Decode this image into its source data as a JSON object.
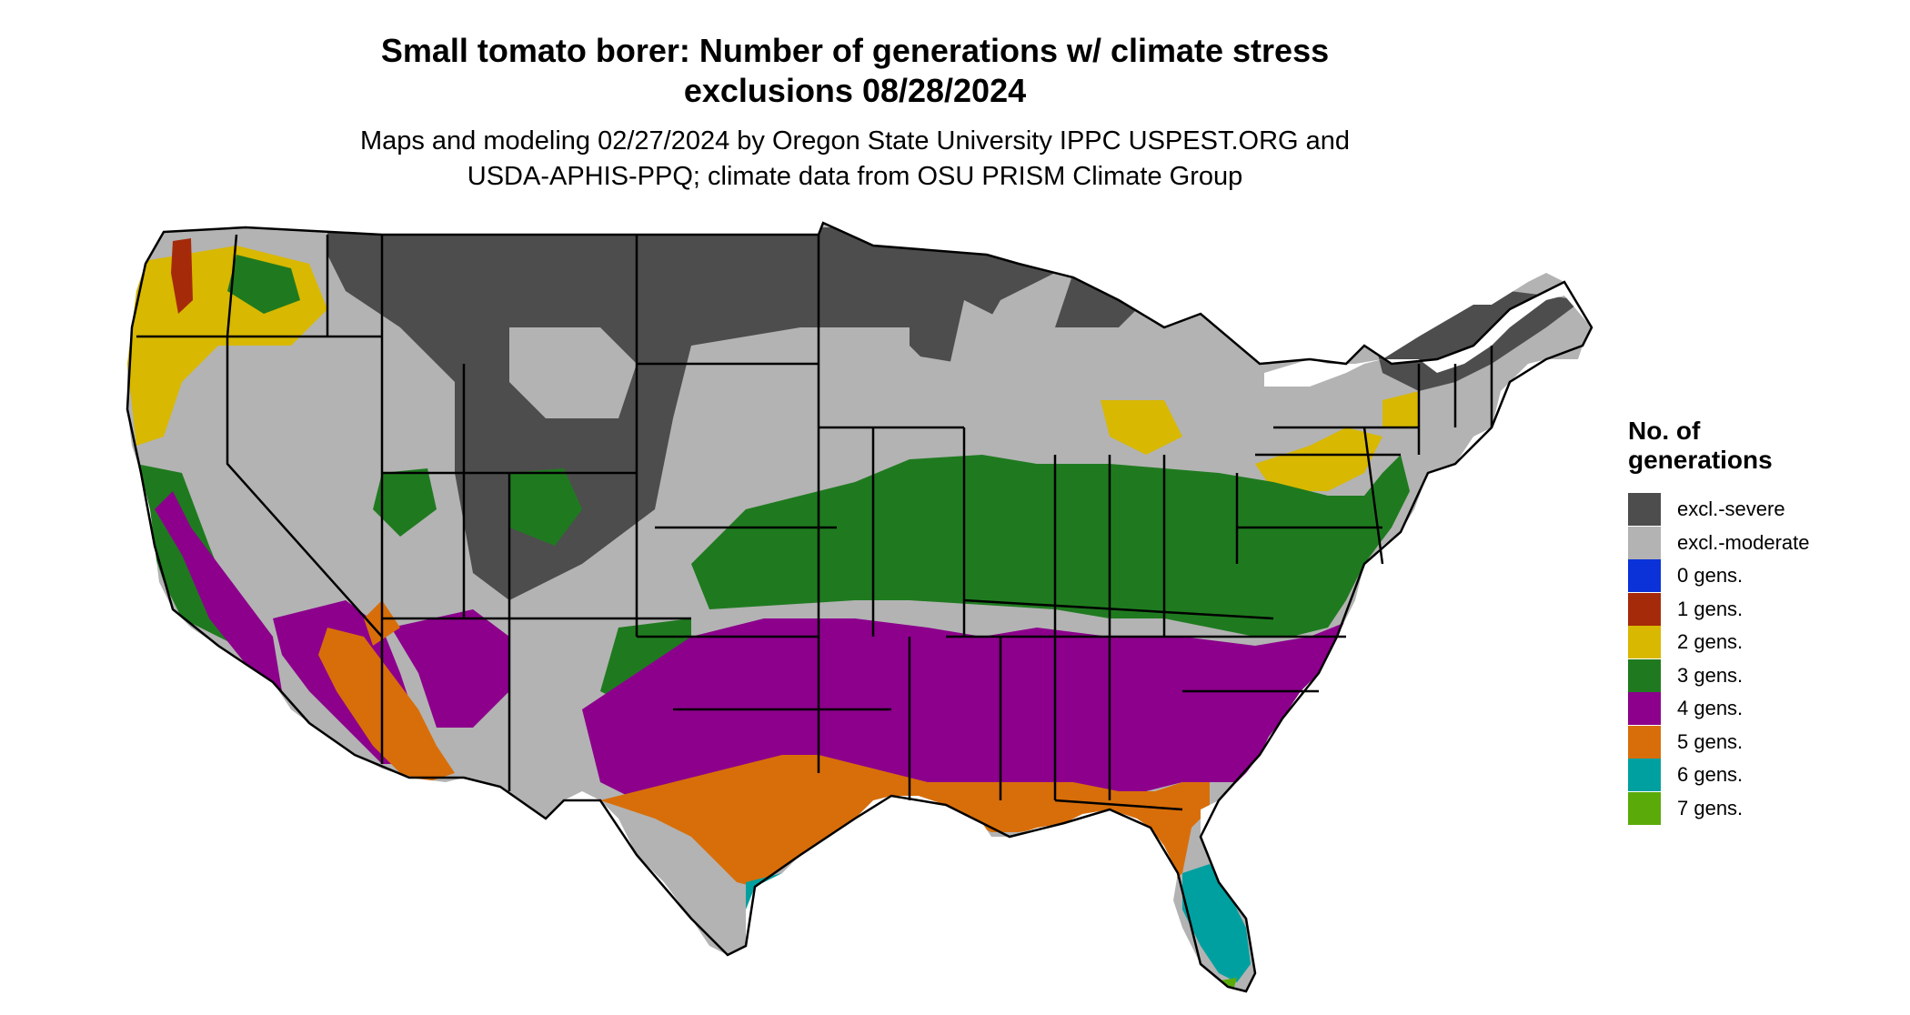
{
  "title": {
    "line1": "Small tomato borer: Number of generations w/ climate stress",
    "line2": "exclusions 08/28/2024"
  },
  "subtitle": {
    "line1": "Maps and modeling 02/27/2024 by Oregon State University IPPC USPEST.ORG and",
    "line2": "USDA-APHIS-PPQ; climate data from OSU PRISM Climate Group"
  },
  "legend": {
    "title_line1": "No. of",
    "title_line2": "generations",
    "items": [
      {
        "label": "excl.-severe",
        "color": "#4d4d4d"
      },
      {
        "label": "excl.-moderate",
        "color": "#b3b3b3"
      },
      {
        "label": "0 gens.",
        "color": "#0a32d8"
      },
      {
        "label": "1 gens.",
        "color": "#a52a0a"
      },
      {
        "label": "2 gens.",
        "color": "#d8b800"
      },
      {
        "label": "3 gens.",
        "color": "#1f7a1f"
      },
      {
        "label": "4 gens.",
        "color": "#8c008c"
      },
      {
        "label": "5 gens.",
        "color": "#d86e0a"
      },
      {
        "label": "6 gens.",
        "color": "#00a0a0"
      },
      {
        "label": "7 gens.",
        "color": "#5aaa0a"
      }
    ]
  }
}
